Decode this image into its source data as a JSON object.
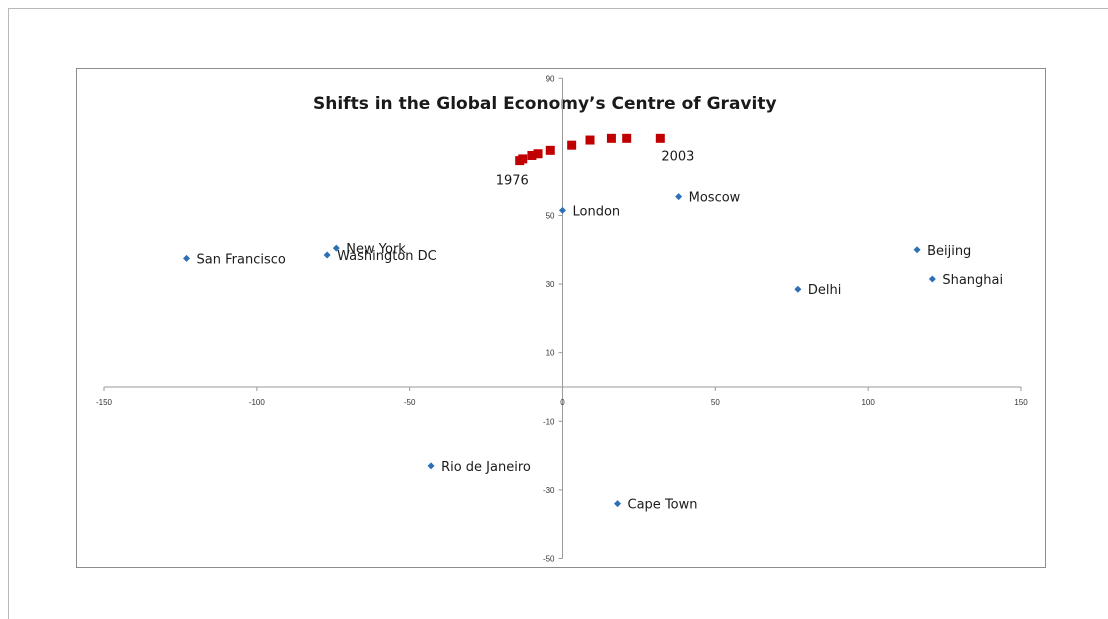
{
  "chart_data": {
    "type": "scatter",
    "title": "Shifts in the Global Economy’s Centre of Gravity",
    "xlabel": "",
    "ylabel": "",
    "xlim": [
      -150,
      150
    ],
    "ylim": [
      -50,
      90
    ],
    "xticks": [
      -150,
      -100,
      -50,
      0,
      50,
      100,
      150
    ],
    "yticks": [
      90,
      50,
      30,
      10,
      -10,
      -30,
      -50
    ],
    "grid": false,
    "legend": "none",
    "series": [
      {
        "color": "#2f6fb5",
        "marker": "diamond",
        "points": [
          {
            "label": "San Francisco",
            "x": -123,
            "y": 37.5
          },
          {
            "label": "New York",
            "x": -74,
            "y": 40.5
          },
          {
            "label": "Washington DC",
            "x": -77,
            "y": 38.5
          },
          {
            "label": "London",
            "x": 0,
            "y": 51.5
          },
          {
            "label": "Moscow",
            "x": 38,
            "y": 55.5
          },
          {
            "label": "Beijing",
            "x": 116,
            "y": 40
          },
          {
            "label": "Shanghai",
            "x": 121,
            "y": 31.5
          },
          {
            "label": "Delhi",
            "x": 77,
            "y": 28.5
          },
          {
            "label": "Rio de Janeiro",
            "x": -43,
            "y": -23
          },
          {
            "label": "Cape Town",
            "x": 18,
            "y": -34
          }
        ]
      },
      {
        "color": "#c00000",
        "marker": "square",
        "start_label": "1976",
        "end_label": "2003",
        "points": [
          {
            "x": -14,
            "y": 66
          },
          {
            "x": -13,
            "y": 66.5
          },
          {
            "x": -10,
            "y": 67.5
          },
          {
            "x": -8,
            "y": 68
          },
          {
            "x": -4,
            "y": 69
          },
          {
            "x": 3,
            "y": 70.5
          },
          {
            "x": 9,
            "y": 72
          },
          {
            "x": 16,
            "y": 72.5
          },
          {
            "x": 21,
            "y": 72.5
          },
          {
            "x": 32,
            "y": 72.5
          }
        ]
      }
    ]
  }
}
